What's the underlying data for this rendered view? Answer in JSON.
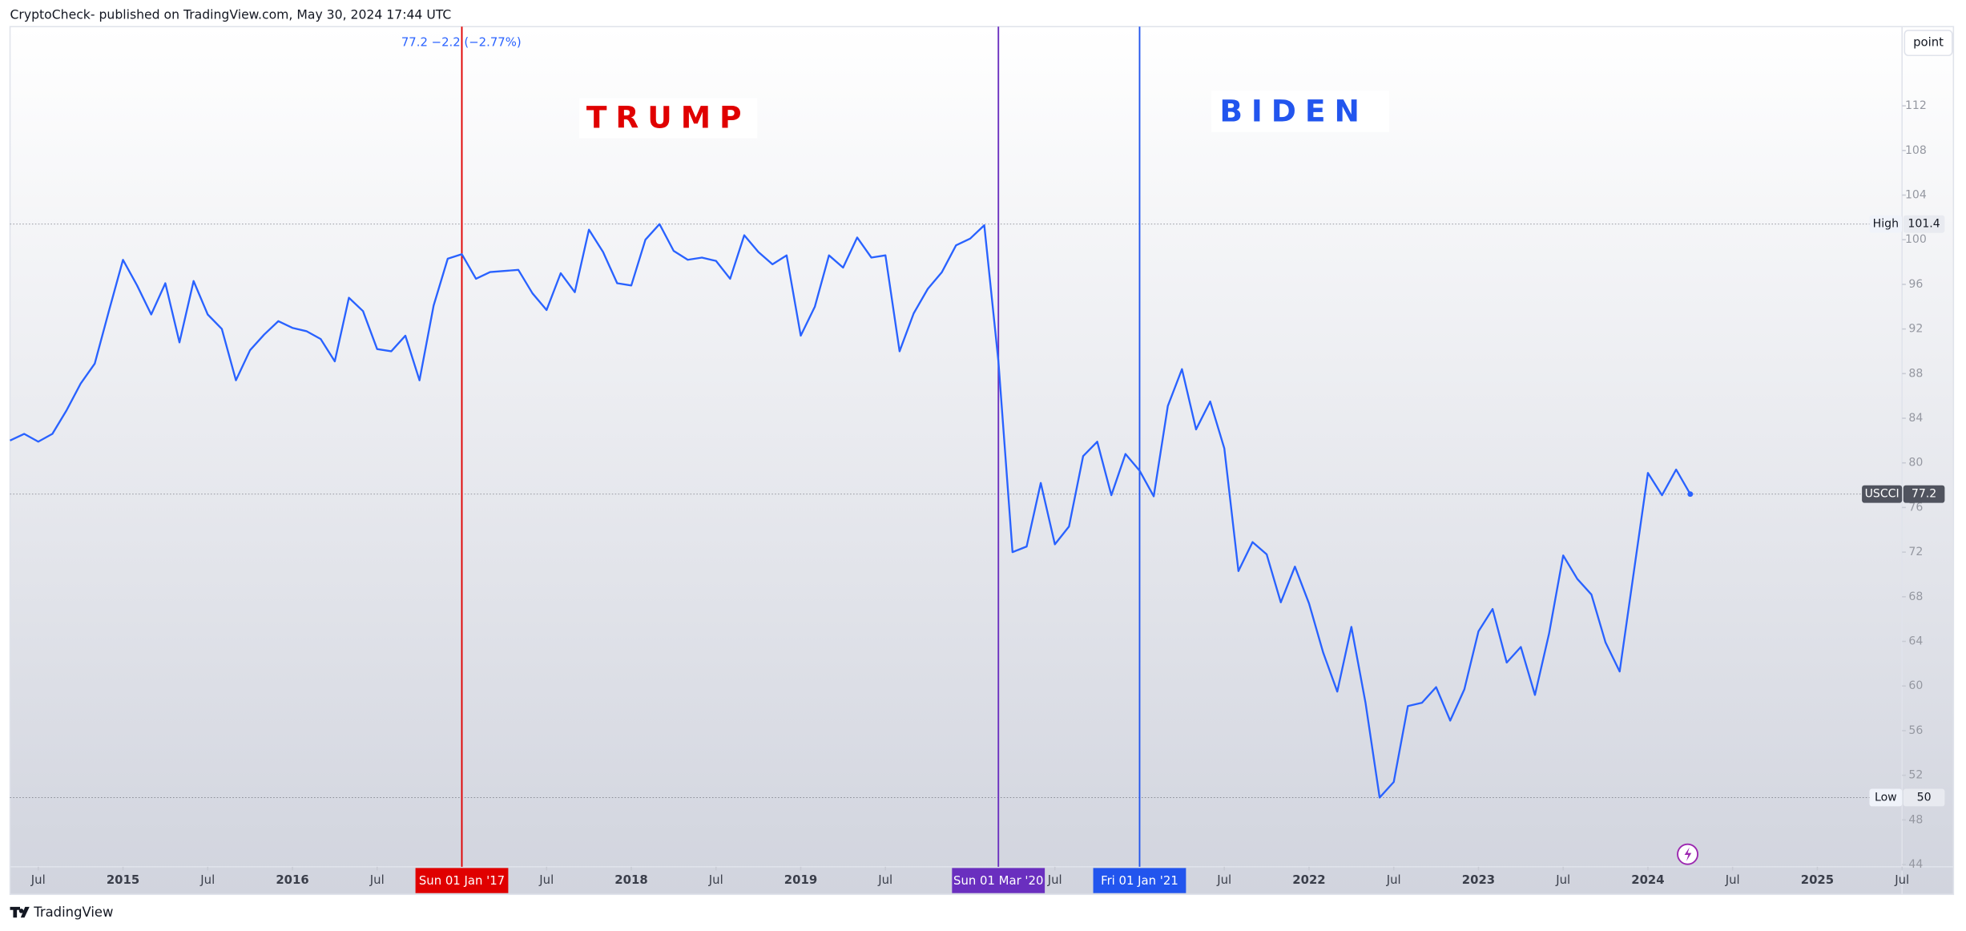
{
  "header": "CryptoCheck- published on TradingView.com, May 30, 2024 17:44 UTC",
  "footer": "TradingView",
  "button": "point",
  "chart_data": {
    "type": "line",
    "status_line": "77.2  −2.2 (−2.77%)",
    "annotations": [
      {
        "text": "TRUMP",
        "color": "#e00000"
      },
      {
        "text": "BIDEN",
        "color": "#2255ee"
      }
    ],
    "x": [
      "2014-05",
      "2014-06",
      "2014-07",
      "2014-08",
      "2014-09",
      "2014-10",
      "2014-11",
      "2014-12",
      "2015-01",
      "2015-02",
      "2015-03",
      "2015-04",
      "2015-05",
      "2015-06",
      "2015-07",
      "2015-08",
      "2015-09",
      "2015-10",
      "2015-11",
      "2015-12",
      "2016-01",
      "2016-02",
      "2016-03",
      "2016-04",
      "2016-05",
      "2016-06",
      "2016-07",
      "2016-08",
      "2016-09",
      "2016-10",
      "2016-11",
      "2016-12",
      "2017-01",
      "2017-02",
      "2017-03",
      "2017-04",
      "2017-05",
      "2017-06",
      "2017-07",
      "2017-08",
      "2017-09",
      "2017-10",
      "2017-11",
      "2017-12",
      "2018-01",
      "2018-02",
      "2018-03",
      "2018-04",
      "2018-05",
      "2018-06",
      "2018-07",
      "2018-08",
      "2018-09",
      "2018-10",
      "2018-11",
      "2018-12",
      "2019-01",
      "2019-02",
      "2019-03",
      "2019-04",
      "2019-05",
      "2019-06",
      "2019-07",
      "2019-08",
      "2019-09",
      "2019-10",
      "2019-11",
      "2019-12",
      "2020-01",
      "2020-02",
      "2020-03",
      "2020-04",
      "2020-05",
      "2020-06",
      "2020-07",
      "2020-08",
      "2020-09",
      "2020-10",
      "2020-11",
      "2020-12",
      "2021-01",
      "2021-02",
      "2021-03",
      "2021-04",
      "2021-05",
      "2021-06",
      "2021-07",
      "2021-08",
      "2021-09",
      "2021-10",
      "2021-11",
      "2021-12",
      "2022-01",
      "2022-02",
      "2022-03",
      "2022-04",
      "2022-05",
      "2022-06",
      "2022-07",
      "2022-08",
      "2022-09",
      "2022-10",
      "2022-11",
      "2022-12",
      "2023-01",
      "2023-02",
      "2023-03",
      "2023-04",
      "2023-05",
      "2023-06",
      "2023-07",
      "2023-08",
      "2023-09",
      "2023-10",
      "2023-11",
      "2023-12",
      "2024-01",
      "2024-02",
      "2024-03",
      "2024-04"
    ],
    "series": [
      {
        "name": "USCCI",
        "color": "#2962ff",
        "values": [
          82.0,
          82.6,
          81.9,
          82.6,
          84.7,
          87.1,
          88.9,
          93.6,
          98.2,
          95.9,
          93.3,
          96.1,
          90.8,
          96.3,
          93.3,
          92.0,
          87.4,
          90.1,
          91.5,
          92.7,
          92.1,
          91.8,
          91.1,
          89.1,
          94.8,
          93.6,
          90.2,
          90.0,
          91.4,
          87.4,
          94.1,
          98.3,
          98.7,
          96.5,
          97.1,
          97.2,
          97.3,
          95.2,
          93.7,
          97.0,
          95.3,
          100.9,
          98.9,
          96.1,
          95.9,
          100.0,
          101.4,
          99.0,
          98.2,
          98.4,
          98.1,
          96.5,
          100.4,
          98.9,
          97.8,
          98.6,
          91.4,
          94.0,
          98.6,
          97.5,
          100.2,
          98.4,
          98.6,
          90.0,
          93.4,
          95.6,
          97.1,
          99.5,
          100.1,
          101.3,
          89.1,
          72.0,
          72.5,
          78.2,
          72.7,
          74.3,
          80.6,
          81.9,
          77.1,
          80.8,
          79.3,
          77.0,
          85.1,
          88.4,
          83.0,
          85.5,
          81.3,
          70.3,
          72.9,
          71.8,
          67.5,
          70.7,
          67.4,
          63.0,
          59.5,
          65.3,
          58.5,
          50.0,
          51.4,
          58.2,
          58.5,
          59.9,
          56.9,
          59.7,
          64.9,
          66.9,
          62.1,
          63.5,
          59.2,
          64.7,
          71.7,
          69.6,
          68.2,
          63.9,
          61.3,
          70.2,
          79.1,
          77.1,
          79.4,
          77.2
        ]
      }
    ],
    "xlim": [
      "2014-05",
      "2025-07"
    ],
    "xticks": [
      {
        "value": "2014-07",
        "label": "Jul"
      },
      {
        "value": "2015-01",
        "label": "2015"
      },
      {
        "value": "2015-07",
        "label": "Jul"
      },
      {
        "value": "2016-01",
        "label": "2016"
      },
      {
        "value": "2016-07",
        "label": "Jul"
      },
      {
        "value": "2017-07",
        "label": "Jul"
      },
      {
        "value": "2018-01",
        "label": "2018"
      },
      {
        "value": "2018-07",
        "label": "Jul"
      },
      {
        "value": "2019-01",
        "label": "2019"
      },
      {
        "value": "2019-07",
        "label": "Jul"
      },
      {
        "value": "2020-07",
        "label": "Jul"
      },
      {
        "value": "2021-07",
        "label": "Jul"
      },
      {
        "value": "2022-01",
        "label": "2022"
      },
      {
        "value": "2022-07",
        "label": "Jul"
      },
      {
        "value": "2023-01",
        "label": "2023"
      },
      {
        "value": "2023-07",
        "label": "Jul"
      },
      {
        "value": "2024-01",
        "label": "2024"
      },
      {
        "value": "2024-07",
        "label": "Jul"
      },
      {
        "value": "2025-01",
        "label": "2025"
      },
      {
        "value": "2025-07",
        "label": "Jul"
      }
    ],
    "ylim": [
      43.8,
      119.1
    ],
    "yticks": [
      44,
      48,
      52,
      56,
      60,
      64,
      68,
      72,
      76,
      80,
      84,
      88,
      92,
      96,
      100,
      104,
      108,
      112
    ],
    "markers": [
      {
        "x": "2017-01",
        "label": "Sun 01 Jan '17",
        "color": "#e00000"
      },
      {
        "x": "2020-03",
        "label": "Sun 01 Mar '20",
        "color": "#6a2fbf"
      },
      {
        "x": "2021-01",
        "label": "Fri 01 Jan '21",
        "color": "#2255ee"
      }
    ],
    "high": {
      "label": "High",
      "value": 101.4
    },
    "low": {
      "label": "Low",
      "value": 50
    },
    "last": {
      "label": "USCCI",
      "value": 77.2
    }
  }
}
